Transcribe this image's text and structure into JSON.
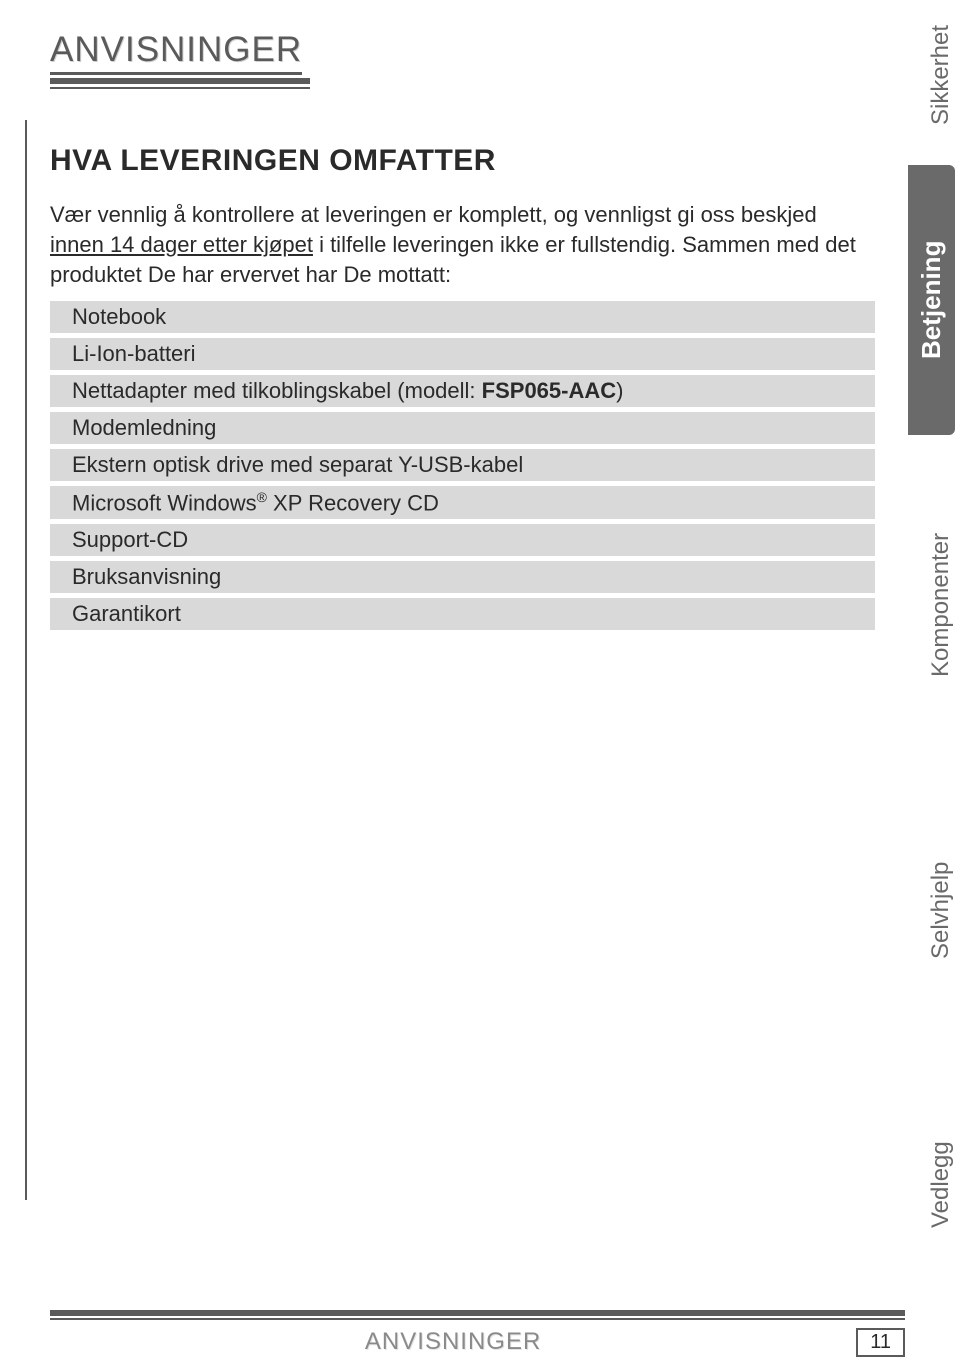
{
  "colors": {
    "text": "#2a2a2a",
    "muted": "#5a5a5a",
    "row_bg": "#d9d9d9",
    "tab_active_bg": "#6a6a6a",
    "tab_inactive_text": "#6a6a6a",
    "page_bg": "#ffffff"
  },
  "typography": {
    "body_font_family": "Verdana",
    "body_fontsize": 22,
    "section_title_fontsize": 30,
    "chapter_title_fontsize": 35,
    "tab_fontsize": 24
  },
  "chapter_title": "ANVISNINGER",
  "section_title": "HVA LEVERINGEN OMFATTER",
  "paragraph_parts": {
    "pre": "Vær vennlig å kontrollere at leveringen er komplett, og vennligst gi oss beskjed ",
    "underlined": "innen 14 dager etter kjøpet",
    "post": " i tilfelle leveringen ikke er fullstendig. Sammen med det produktet De har ervervet har De mottatt:"
  },
  "items": [
    {
      "text": "Notebook"
    },
    {
      "text": "Li-Ion-batteri"
    },
    {
      "prefix": "Nettadapter med tilkoblingskabel (modell: ",
      "bold": "FSP065-AAC",
      "suffix": ")"
    },
    {
      "text": "Modemledning"
    },
    {
      "text": "Ekstern optisk drive med separat Y-USB-kabel"
    },
    {
      "prefix": "Microsoft Windows",
      "sup": "®",
      "suffix": " XP Recovery CD"
    },
    {
      "text": "Support-CD"
    },
    {
      "text": "Bruksanvisning"
    },
    {
      "text": "Garantikort"
    }
  ],
  "tabs": [
    {
      "label": "Sikkerhet",
      "active": false
    },
    {
      "label": "Betjening",
      "active": true
    },
    {
      "label": "Komponenter",
      "active": false
    },
    {
      "label": "Selvhjelp",
      "active": false
    },
    {
      "label": "Vedlegg",
      "active": false
    }
  ],
  "footer": {
    "title": "ANVISNINGER",
    "page_number": "11"
  }
}
